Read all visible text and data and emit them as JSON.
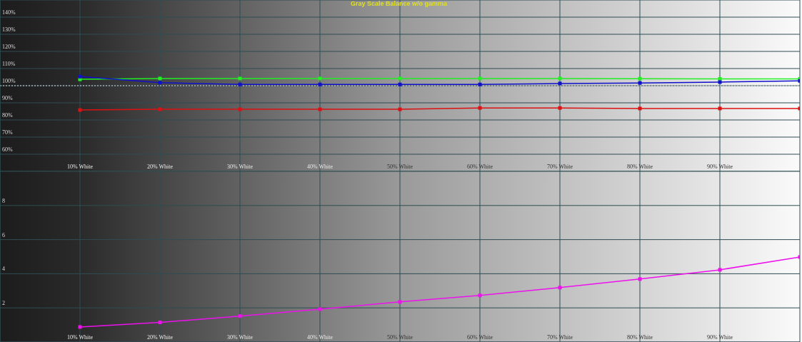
{
  "chart_data": [
    {
      "type": "line",
      "title": "Gray Scale Balance w/o gamma",
      "categories": [
        "10% White",
        "20% White",
        "30% White",
        "40% White",
        "50% White",
        "60% White",
        "70% White",
        "80% White",
        "90% White",
        null
      ],
      "series": [
        {
          "color": "#22ee22",
          "values": [
            103.7,
            104.2,
            104.2,
            104.2,
            104.2,
            104.2,
            104.2,
            104.1,
            104.0,
            104.0
          ]
        },
        {
          "color": "#1010cc",
          "values": [
            105.3,
            101.8,
            100.7,
            100.7,
            100.7,
            100.7,
            101.3,
            101.6,
            102.1,
            102.8
          ]
        },
        {
          "color": "#dd1111",
          "values": [
            85.8,
            86.2,
            86.2,
            86.2,
            86.2,
            87.0,
            87.0,
            86.7,
            86.7,
            86.7
          ]
        }
      ],
      "ylim": [
        50,
        150
      ],
      "yticks": [
        {
          "value": 60,
          "label": "60%"
        },
        {
          "value": 70,
          "label": "70%"
        },
        {
          "value": 80,
          "label": "80%"
        },
        {
          "value": 90,
          "label": "90%"
        },
        {
          "value": 100,
          "label": "100%"
        },
        {
          "value": 110,
          "label": "110%"
        },
        {
          "value": 120,
          "label": "120%"
        },
        {
          "value": 130,
          "label": "130%"
        },
        {
          "value": 140,
          "label": "140%"
        }
      ],
      "ref_lines": [
        {
          "axis": "y",
          "value": 100,
          "color": "#dddddd",
          "line_style": "dotted"
        }
      ],
      "grid": true,
      "marker": "square",
      "legend": false
    },
    {
      "type": "line",
      "categories": [
        "10% White",
        "20% White",
        "30% White",
        "40% White",
        "50% White",
        "60% White",
        "70% White",
        "80% White",
        "90% White",
        null
      ],
      "series": [
        {
          "color": "#ee11ee",
          "values": [
            0.88,
            1.15,
            1.52,
            1.92,
            2.35,
            2.73,
            3.19,
            3.69,
            4.23,
            4.98
          ]
        }
      ],
      "ylim": [
        0,
        10
      ],
      "yticks": [
        2,
        4,
        6,
        8
      ],
      "grid": true,
      "marker": "square",
      "legend": false
    }
  ]
}
